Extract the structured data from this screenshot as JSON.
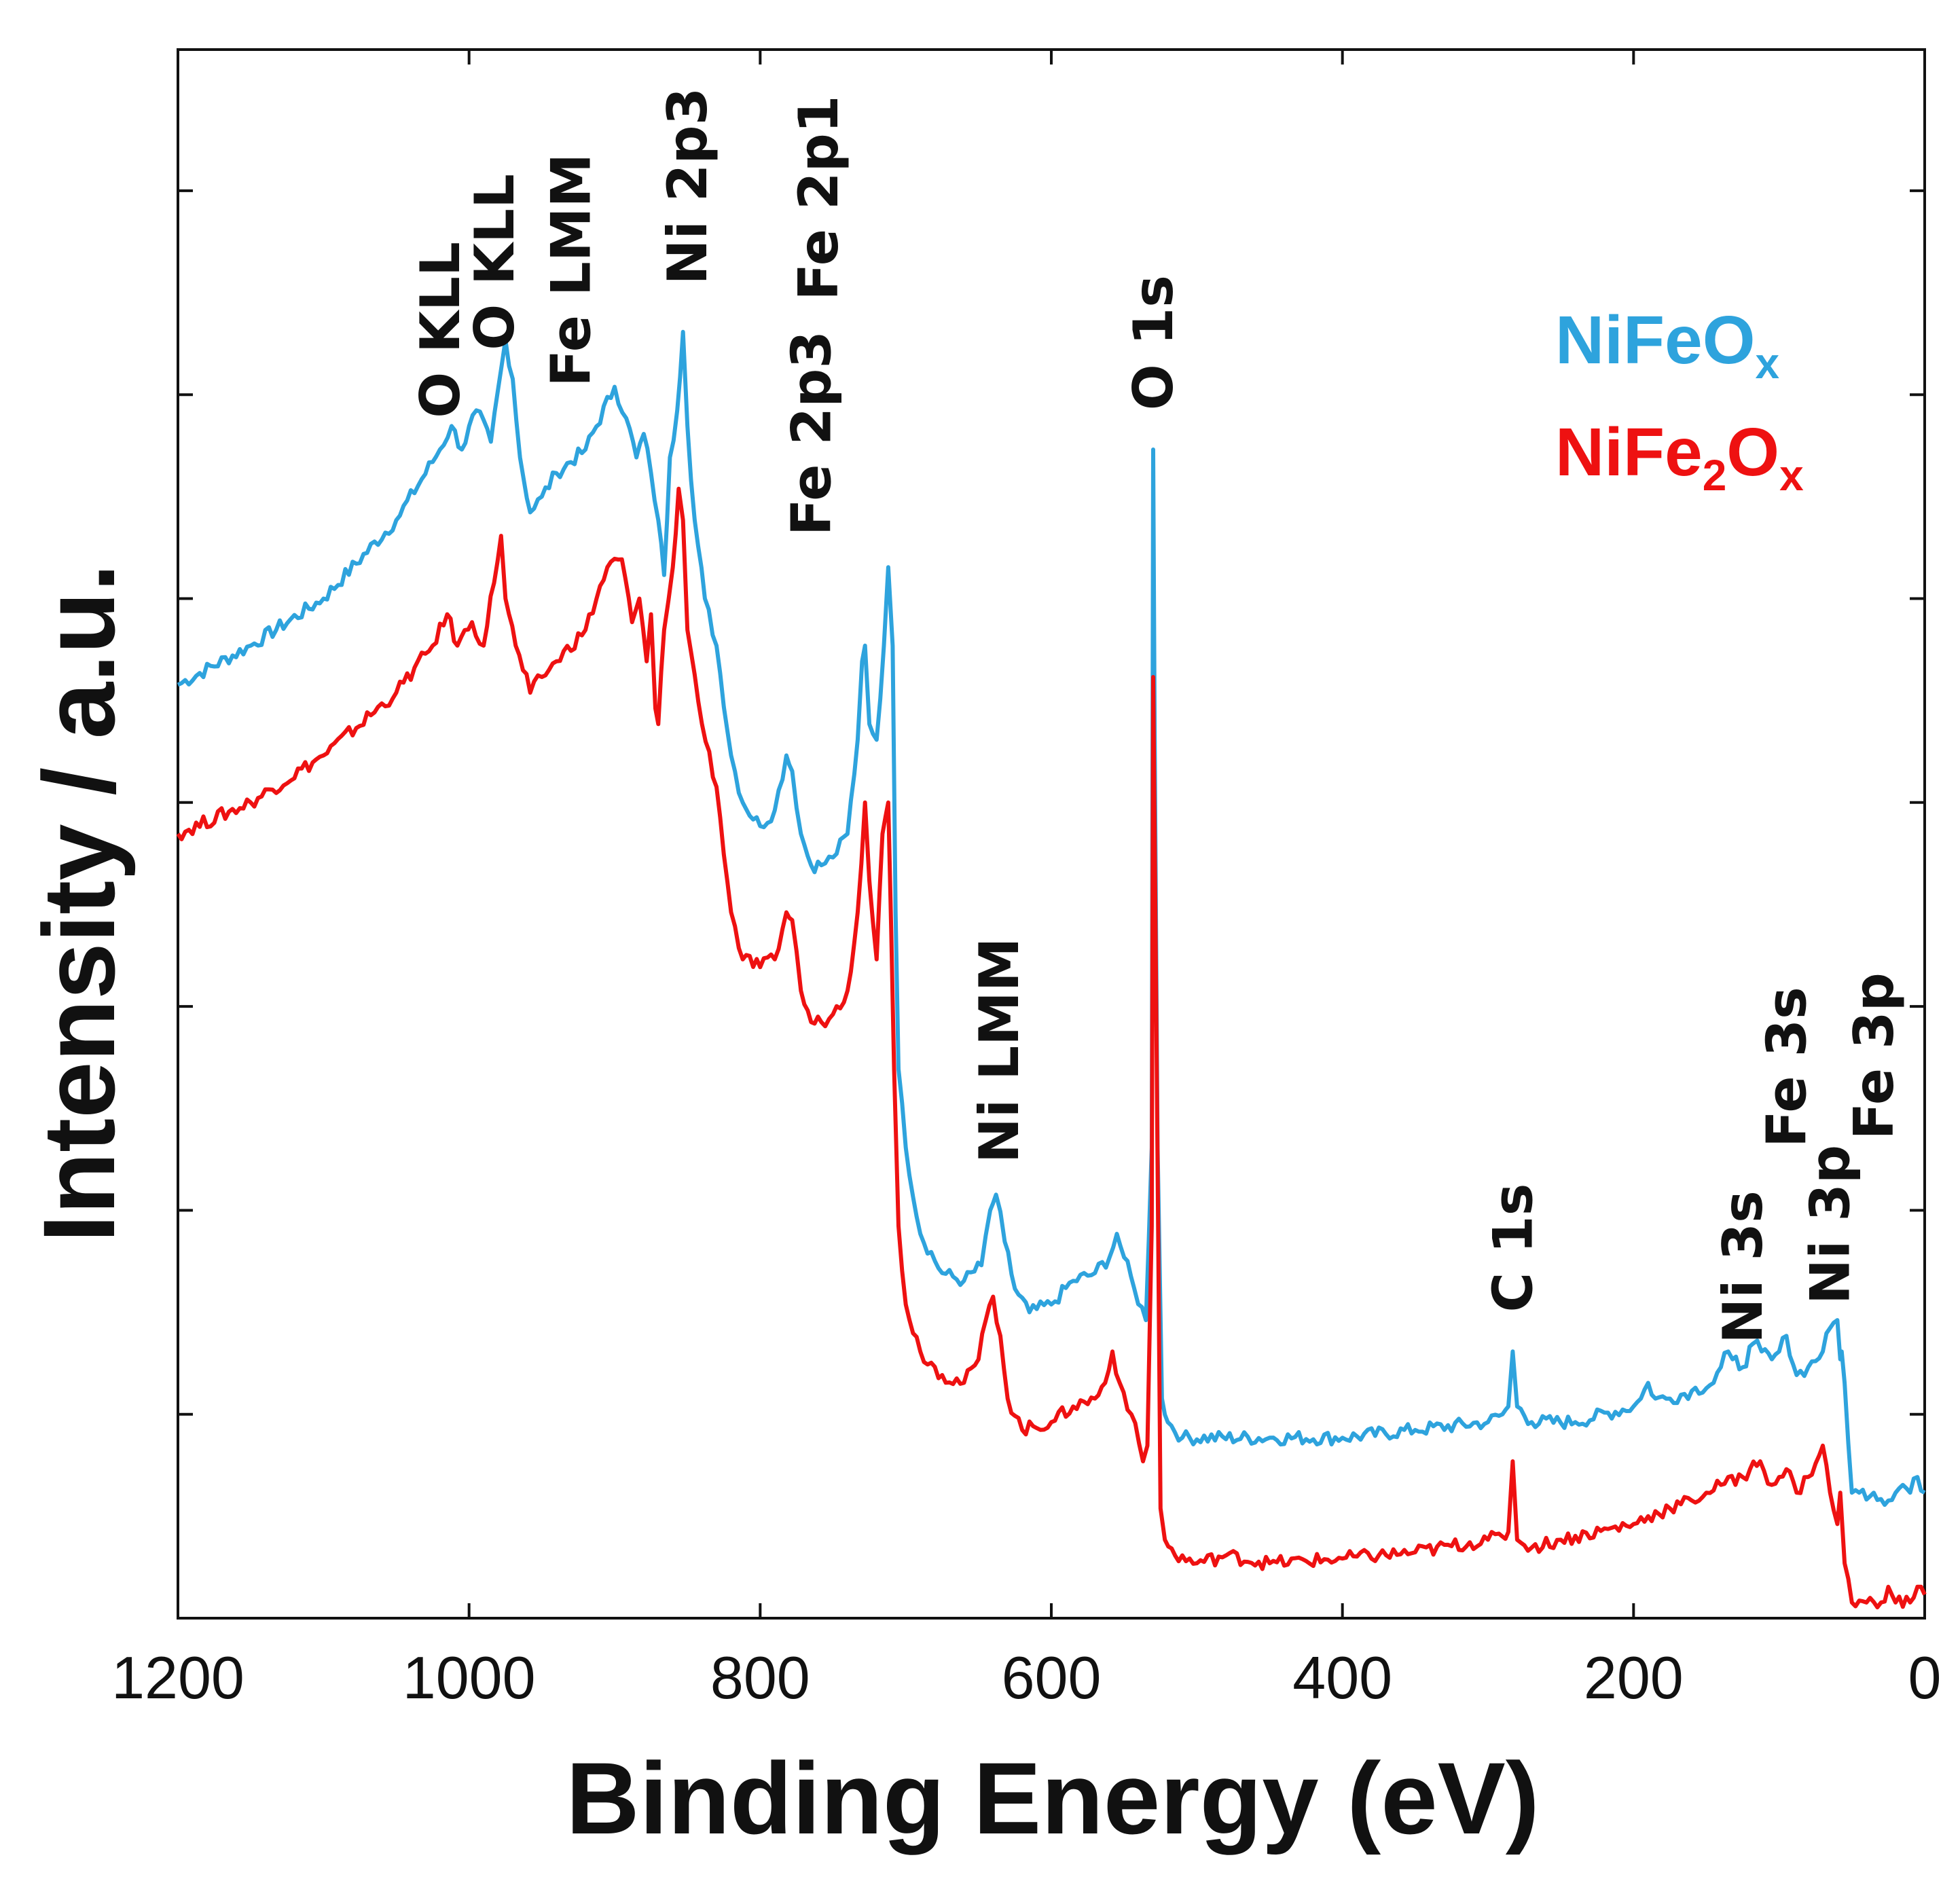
{
  "chart_data": {
    "type": "line",
    "title": "",
    "xlabel": "Binding Energy (eV)",
    "ylabel": "Intensity / a.u.",
    "xlim": [
      1200,
      0
    ],
    "ylim": [
      0,
      100
    ],
    "x_reversed": true,
    "x_ticks": [
      1200,
      1000,
      800,
      600,
      400,
      200,
      0
    ],
    "x_tick_labels": [
      "1200",
      "1000",
      "800",
      "600",
      "400",
      "200",
      "0"
    ],
    "y_ticks": [
      13,
      26,
      39,
      52,
      65,
      78,
      91
    ],
    "grid": false,
    "legend_position": "top-right",
    "legend": [
      {
        "name": "NiFeO",
        "sub": "x",
        "color": "#2ea3dd"
      },
      {
        "name": "NiFe",
        "sub": "2",
        "name2": "O",
        "sub2": "x",
        "color": "#ee1111"
      }
    ],
    "series": [
      {
        "name": "NiFeOx",
        "color": "#2ea3dd",
        "points": [
          [
            1200,
            59.5
          ],
          [
            1150,
            62
          ],
          [
            1100,
            65
          ],
          [
            1050,
            70
          ],
          [
            1020,
            74.5
          ],
          [
            1012,
            76
          ],
          [
            1005,
            74.5
          ],
          [
            995,
            77
          ],
          [
            985,
            75
          ],
          [
            975,
            81.5
          ],
          [
            970,
            79
          ],
          [
            965,
            74
          ],
          [
            958,
            70.5
          ],
          [
            950,
            71.5
          ],
          [
            940,
            73
          ],
          [
            920,
            74.5
          ],
          [
            900,
            78.5
          ],
          [
            892,
            76.5
          ],
          [
            885,
            74
          ],
          [
            880,
            75.5
          ],
          [
            875,
            73
          ],
          [
            870,
            70
          ],
          [
            866,
            66.5
          ],
          [
            862,
            74
          ],
          [
            857,
            77
          ],
          [
            853,
            82
          ],
          [
            850,
            76
          ],
          [
            845,
            70
          ],
          [
            838,
            65
          ],
          [
            830,
            62
          ],
          [
            820,
            55
          ],
          [
            812,
            52
          ],
          [
            800,
            50.5
          ],
          [
            790,
            51.5
          ],
          [
            782,
            55
          ],
          [
            778,
            54
          ],
          [
            772,
            50
          ],
          [
            765,
            48
          ],
          [
            758,
            48
          ],
          [
            750,
            48.5
          ],
          [
            740,
            50
          ],
          [
            733,
            56
          ],
          [
            730,
            61
          ],
          [
            728,
            62
          ],
          [
            725,
            57
          ],
          [
            720,
            56
          ],
          [
            715,
            62
          ],
          [
            712,
            67
          ],
          [
            709,
            62
          ],
          [
            707,
            45
          ],
          [
            705,
            35
          ],
          [
            700,
            30
          ],
          [
            690,
            24.5
          ],
          [
            675,
            22
          ],
          [
            660,
            21.5
          ],
          [
            648,
            22.5
          ],
          [
            642,
            26
          ],
          [
            638,
            27
          ],
          [
            632,
            24
          ],
          [
            625,
            21
          ],
          [
            615,
            19.5
          ],
          [
            600,
            20
          ],
          [
            585,
            21.5
          ],
          [
            570,
            22
          ],
          [
            560,
            23
          ],
          [
            555,
            24.5
          ],
          [
            550,
            23
          ],
          [
            543,
            21
          ],
          [
            535,
            19
          ],
          [
            531,
            30
          ],
          [
            530,
            74.5
          ],
          [
            529,
            56
          ],
          [
            527,
            30
          ],
          [
            524,
            14
          ],
          [
            520,
            12.5
          ],
          [
            510,
            11.5
          ],
          [
            450,
            11.5
          ],
          [
            400,
            11.5
          ],
          [
            350,
            12
          ],
          [
            300,
            12.5
          ],
          [
            290,
            13
          ],
          [
            286,
            13.5
          ],
          [
            283,
            17
          ],
          [
            280,
            13.5
          ],
          [
            270,
            12.5
          ],
          [
            240,
            12.5
          ],
          [
            200,
            13.5
          ],
          [
            195,
            14
          ],
          [
            190,
            15
          ],
          [
            185,
            14
          ],
          [
            175,
            14
          ],
          [
            160,
            14.5
          ],
          [
            145,
            15
          ],
          [
            140,
            16
          ],
          [
            135,
            17
          ],
          [
            132,
            16.5
          ],
          [
            125,
            16
          ],
          [
            118,
            17.5
          ],
          [
            112,
            17
          ],
          [
            105,
            16.5
          ],
          [
            100,
            17
          ],
          [
            95,
            18
          ],
          [
            88,
            15.5
          ],
          [
            80,
            16
          ],
          [
            70,
            17
          ],
          [
            65,
            18.5
          ],
          [
            60,
            19
          ],
          [
            58,
            16.5
          ],
          [
            57,
            17
          ],
          [
            55,
            15
          ],
          [
            50,
            8
          ],
          [
            45,
            8
          ],
          [
            35,
            8
          ],
          [
            25,
            7.5
          ],
          [
            15,
            8.5
          ],
          [
            10,
            8
          ],
          [
            5,
            9
          ],
          [
            0,
            8
          ]
        ]
      },
      {
        "name": "NiFe2Ox",
        "color": "#ee1111",
        "points": [
          [
            1200,
            50
          ],
          [
            1150,
            52
          ],
          [
            1100,
            55
          ],
          [
            1050,
            59
          ],
          [
            1025,
            62
          ],
          [
            1015,
            64
          ],
          [
            1008,
            62
          ],
          [
            998,
            63.5
          ],
          [
            990,
            62
          ],
          [
            978,
            69
          ],
          [
            975,
            65
          ],
          [
            968,
            62
          ],
          [
            958,
            59
          ],
          [
            950,
            60
          ],
          [
            940,
            61
          ],
          [
            920,
            63
          ],
          [
            905,
            67
          ],
          [
            895,
            67.5
          ],
          [
            888,
            63.5
          ],
          [
            883,
            65
          ],
          [
            878,
            61
          ],
          [
            875,
            64
          ],
          [
            872,
            58
          ],
          [
            870,
            57
          ],
          [
            866,
            63
          ],
          [
            860,
            67
          ],
          [
            856,
            72
          ],
          [
            853,
            70
          ],
          [
            850,
            63
          ],
          [
            840,
            57
          ],
          [
            830,
            53
          ],
          [
            820,
            45
          ],
          [
            812,
            42
          ],
          [
            800,
            41.5
          ],
          [
            790,
            42
          ],
          [
            782,
            45
          ],
          [
            778,
            44.5
          ],
          [
            772,
            40
          ],
          [
            765,
            38
          ],
          [
            758,
            38
          ],
          [
            750,
            38.5
          ],
          [
            740,
            40
          ],
          [
            733,
            45
          ],
          [
            728,
            52
          ],
          [
            725,
            47
          ],
          [
            720,
            42
          ],
          [
            716,
            50
          ],
          [
            712,
            52
          ],
          [
            710,
            44
          ],
          [
            708,
            35
          ],
          [
            705,
            25
          ],
          [
            700,
            20
          ],
          [
            690,
            17
          ],
          [
            675,
            15.5
          ],
          [
            660,
            15
          ],
          [
            650,
            16.5
          ],
          [
            645,
            19
          ],
          [
            640,
            20.5
          ],
          [
            635,
            18
          ],
          [
            630,
            14
          ],
          [
            620,
            12
          ],
          [
            600,
            12.5
          ],
          [
            585,
            13.5
          ],
          [
            570,
            14
          ],
          [
            563,
            15
          ],
          [
            558,
            17
          ],
          [
            553,
            15
          ],
          [
            545,
            13
          ],
          [
            537,
            10
          ],
          [
            534,
            11
          ],
          [
            531,
            25
          ],
          [
            530,
            60
          ],
          [
            528,
            40
          ],
          [
            525,
            7
          ],
          [
            522,
            5
          ],
          [
            515,
            4
          ],
          [
            500,
            3.5
          ],
          [
            480,
            4
          ],
          [
            450,
            3.5
          ],
          [
            400,
            3.8
          ],
          [
            350,
            4.2
          ],
          [
            300,
            5
          ],
          [
            290,
            5.2
          ],
          [
            286,
            5.5
          ],
          [
            283,
            10
          ],
          [
            280,
            5
          ],
          [
            270,
            4.5
          ],
          [
            250,
            5
          ],
          [
            200,
            6
          ],
          [
            190,
            6.5
          ],
          [
            175,
            7
          ],
          [
            160,
            7.5
          ],
          [
            150,
            8
          ],
          [
            140,
            8.5
          ],
          [
            135,
            9
          ],
          [
            130,
            8.5
          ],
          [
            120,
            9.5
          ],
          [
            113,
            10
          ],
          [
            105,
            8.5
          ],
          [
            100,
            9
          ],
          [
            95,
            9.5
          ],
          [
            88,
            8
          ],
          [
            80,
            9
          ],
          [
            70,
            11
          ],
          [
            65,
            8
          ],
          [
            60,
            6
          ],
          [
            58,
            8
          ],
          [
            55,
            3.5
          ],
          [
            50,
            1
          ],
          [
            40,
            1
          ],
          [
            30,
            1
          ],
          [
            25,
            2
          ],
          [
            20,
            1
          ],
          [
            10,
            1
          ],
          [
            5,
            2
          ],
          [
            0,
            1.5
          ]
        ]
      }
    ],
    "annotations": [
      {
        "text": "O KLL",
        "x": 1020,
        "y": 76.5,
        "line": 1
      },
      {
        "text": "O KLL",
        "x": 1020,
        "y": 76.5,
        "line": 2
      },
      {
        "text": "Fe LMM",
        "x": 930,
        "y": 78.5,
        "line": 1
      },
      {
        "text": "Ni 2p3",
        "x": 850,
        "y": 85,
        "line": 1
      },
      {
        "text": "Fe 2p1",
        "x": 760,
        "y": 84,
        "line": 1
      },
      {
        "text": "Fe 2p3",
        "x": 765,
        "y": 69,
        "line": 1
      },
      {
        "text": "O 1s",
        "x": 530,
        "y": 77,
        "line": 1
      },
      {
        "text": "Ni LMM",
        "x": 636,
        "y": 29,
        "line": 1
      },
      {
        "text": "C 1s",
        "x": 283,
        "y": 19.5,
        "line": 1
      },
      {
        "text": "Ni 3s",
        "x": 125,
        "y": 17.5,
        "line": 1
      },
      {
        "text": "Fe 3s",
        "x": 95,
        "y": 30,
        "line": 1
      },
      {
        "text": "Ni 3p",
        "x": 65,
        "y": 20,
        "line": 1
      },
      {
        "text": "Fe 3p",
        "x": 35,
        "y": 30.5,
        "line": 1
      }
    ]
  }
}
